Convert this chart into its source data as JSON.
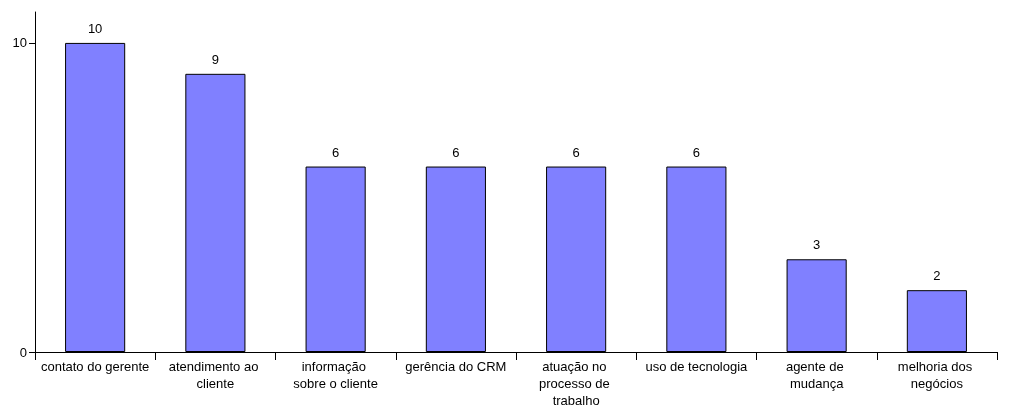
{
  "chart_data": {
    "type": "bar",
    "categories": [
      "contato do gerente",
      "atendimento ao cliente",
      "informação sobre o cliente",
      "gerência do CRM",
      "atuação no processo de trabalho",
      "uso de tecnologia",
      "agente de mudança",
      "melhoria dos negócios"
    ],
    "values": [
      10,
      9,
      6,
      6,
      6,
      6,
      3,
      2
    ],
    "color": "#8080ff",
    "ylim": [
      0,
      11
    ],
    "yticks": [
      0,
      10
    ],
    "grid": false,
    "data_labels": true
  }
}
